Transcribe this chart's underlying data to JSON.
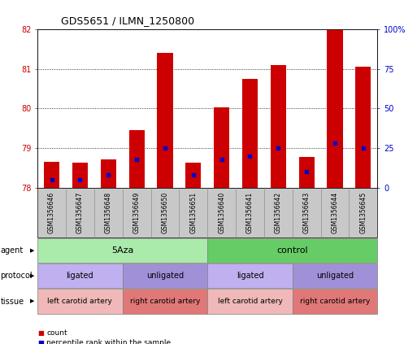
{
  "title": "GDS5651 / ILMN_1250800",
  "samples": [
    "GSM1356646",
    "GSM1356647",
    "GSM1356648",
    "GSM1356649",
    "GSM1356650",
    "GSM1356651",
    "GSM1356640",
    "GSM1356641",
    "GSM1356642",
    "GSM1356643",
    "GSM1356644",
    "GSM1356645"
  ],
  "red_values": [
    78.65,
    78.62,
    78.72,
    79.45,
    81.4,
    78.62,
    80.02,
    80.75,
    81.1,
    78.78,
    82.0,
    81.05
  ],
  "blue_percentiles": [
    5,
    5,
    8,
    18,
    25,
    8,
    18,
    20,
    25,
    10,
    28,
    25
  ],
  "y_min": 78,
  "y_max": 82,
  "y_ticks_left": [
    78,
    79,
    80,
    81,
    82
  ],
  "y_ticks_right": [
    0,
    25,
    50,
    75,
    100
  ],
  "agent_groups": [
    {
      "label": "5Aza",
      "start": 0,
      "end": 5,
      "color": "#AAEAAA"
    },
    {
      "label": "control",
      "start": 6,
      "end": 11,
      "color": "#66CC66"
    }
  ],
  "protocol_groups": [
    {
      "label": "ligated",
      "start": 0,
      "end": 2,
      "color": "#C0B0F0"
    },
    {
      "label": "unligated",
      "start": 3,
      "end": 5,
      "color": "#A090D8"
    },
    {
      "label": "ligated",
      "start": 6,
      "end": 8,
      "color": "#C0B0F0"
    },
    {
      "label": "unligated",
      "start": 9,
      "end": 11,
      "color": "#A090D8"
    }
  ],
  "tissue_groups": [
    {
      "label": "left carotid artery",
      "start": 0,
      "end": 2,
      "color": "#F0B8B8"
    },
    {
      "label": "right carotid artery",
      "start": 3,
      "end": 5,
      "color": "#E07878"
    },
    {
      "label": "left carotid artery",
      "start": 6,
      "end": 8,
      "color": "#F0B8B8"
    },
    {
      "label": "right carotid artery",
      "start": 9,
      "end": 11,
      "color": "#E07878"
    }
  ],
  "bar_color": "#CC0000",
  "dot_color": "#0000CC",
  "bg_color": "#FFFFFF",
  "row_labels": [
    "agent",
    "protocol",
    "tissue"
  ],
  "xtick_bg_color": "#C8C8C8"
}
